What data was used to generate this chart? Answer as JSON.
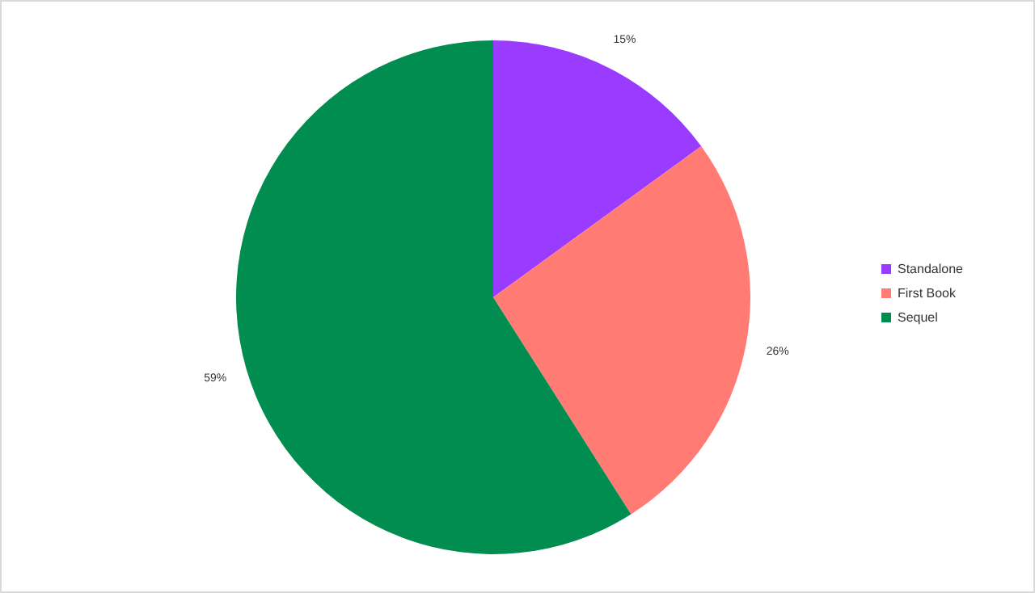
{
  "chart_data": {
    "type": "pie",
    "categories": [
      "Standalone",
      "First Book",
      "Sequel"
    ],
    "values": [
      15,
      26,
      59
    ],
    "colors": [
      "#9a3cff",
      "#ff7b74",
      "#008d4f"
    ],
    "value_labels": [
      "15%",
      "26%",
      "59%"
    ],
    "legend": "right"
  }
}
